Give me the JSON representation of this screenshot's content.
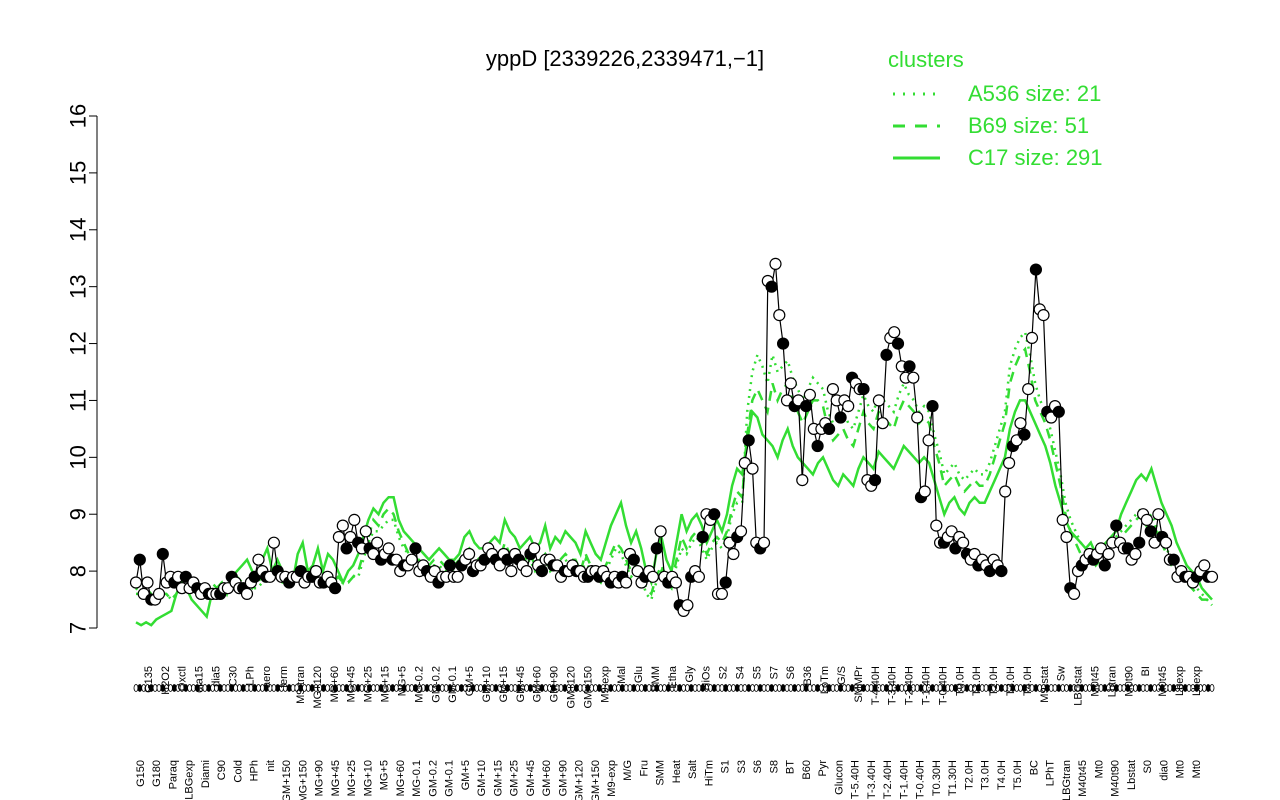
{
  "chart_data": {
    "type": "line",
    "title": "yppD [2339226,2339471,−1]",
    "xlabel": "",
    "ylabel": "",
    "ylim": [
      7,
      16
    ],
    "yticks": [
      7,
      8,
      9,
      10,
      11,
      12,
      13,
      14,
      15,
      16
    ],
    "grid": false,
    "legend": {
      "title": "clusters",
      "placement": "top-right",
      "entries": [
        {
          "label": "A536 size: 21",
          "style": "dotted"
        },
        {
          "label": "B69 size: 51",
          "style": "dashed"
        },
        {
          "label": "C17 size: 291",
          "style": "solid"
        }
      ]
    },
    "tick_labels_lower": [
      "G150",
      "G180",
      "Paraq",
      "LBGexp",
      "Diami",
      "C90",
      "Cold",
      "HPh",
      "nit",
      "GM+150",
      "MG+150",
      "MG+90",
      "MG+45",
      "MG+25",
      "MG+10",
      "MG+5",
      "MG+60",
      "MG-0.1",
      "GM-0.2",
      "GM-0.1",
      "GM+5",
      "GM+10",
      "GM+15",
      "GM+25",
      "GM+45",
      "GM+60",
      "GM+90",
      "GM+120",
      "GM+150",
      "M9-exp",
      "M/G",
      "Fru",
      "SMM",
      "Heat",
      "Salt",
      "HiTm",
      "S1",
      "S3",
      "S6",
      "S8",
      "BT",
      "B60",
      "Pyr",
      "Glucon",
      "T-5.40H",
      "T-3.40H",
      "T-2.40H",
      "T-1.40H",
      "T-0.40H",
      "T0.30H",
      "T1.30H",
      "T2.0H",
      "T3.0H",
      "T4.0H",
      "T5.0H",
      "BC",
      "LPhT",
      "LBGtran",
      "M40t45",
      "Mt0",
      "M40t90",
      "Lbstat",
      "S0",
      "dia0",
      "Mt0",
      "Mt0"
    ],
    "tick_labels_upper": [
      "G135",
      "H2O2",
      "Oxctl",
      "dia15",
      "dia5",
      "C30",
      "LPh",
      "aero",
      "ferm",
      "M9-tran",
      "MG+120",
      "MG+60",
      "MG+45",
      "MG+25",
      "MG+15",
      "MG+5",
      "MG-0.2",
      "GM-0.2",
      "GM-0.1",
      "GM+5",
      "GM+10",
      "GM+15",
      "GM+45",
      "GM+60",
      "GM+90",
      "GM+120",
      "GM+150",
      "M9-exp",
      "Mal",
      "Glu",
      "BMM",
      "Etha",
      "Gly",
      "HiOs",
      "S2",
      "S4",
      "S5",
      "S7",
      "S6",
      "B36",
      "LoTm",
      "G/S",
      "SMMPr",
      "T-4.40H",
      "T-3.40H",
      "T-2.40H",
      "T-1.40H",
      "T-0.40H",
      "T0.0H",
      "T1.0H",
      "T2.0H",
      "T3.0H",
      "T4.0H",
      "M9-stat",
      "Sw",
      "LBGstat",
      "M0t45",
      "Lbtran",
      "M0t90",
      "BI",
      "M0t45",
      "Lbexp",
      "Lbexp"
    ],
    "series": [
      {
        "name": "C17 size: 291",
        "style": "solid",
        "values": [
          7.1,
          7.05,
          7.1,
          7.05,
          7.15,
          7.2,
          7.25,
          7.3,
          7.6,
          7.8,
          7.7,
          7.5,
          7.4,
          7.3,
          7.2,
          7.6,
          7.7,
          7.8,
          7.6,
          7.9,
          8.0,
          8.1,
          8.2,
          8.0,
          7.9,
          8.2,
          8.4,
          8.0,
          8.2,
          8.0,
          7.9,
          7.8,
          8.3,
          8.5,
          8.0,
          8.1,
          8.4,
          8.0,
          8.3,
          8.2,
          8.0,
          7.8,
          8.0,
          8.1,
          8.3,
          8.6,
          8.9,
          9.1,
          9.0,
          9.2,
          9.3,
          9.3,
          8.9,
          8.7,
          8.6,
          8.5,
          8.4,
          8.3,
          8.2,
          8.3,
          8.4,
          8.3,
          8.2,
          8.2,
          8.3,
          8.6,
          8.7,
          8.5,
          8.4,
          8.4,
          8.5,
          8.6,
          8.5,
          8.9,
          8.7,
          8.6,
          8.4,
          8.5,
          8.6,
          8.4,
          8.5,
          8.8,
          8.4,
          8.6,
          8.5,
          8.7,
          8.6,
          8.5,
          8.3,
          8.7,
          8.5,
          8.3,
          8.2,
          8.5,
          8.8,
          9.0,
          9.2,
          8.8,
          8.5,
          8.7,
          8.4,
          8.0,
          7.8,
          8.3,
          8.6,
          8.2,
          8.0,
          8.5,
          9.0,
          8.7,
          8.9,
          9.0,
          8.8,
          8.5,
          8.7,
          8.9,
          8.7,
          9.0,
          9.5,
          9.8,
          9.7,
          10.3,
          10.8,
          10.7,
          10.4,
          10.3,
          10.2,
          10.0,
          10.3,
          10.5,
          10.2,
          10.0,
          9.9,
          9.8,
          9.7,
          9.9,
          10.0,
          9.8,
          9.6,
          9.5,
          9.7,
          9.6,
          9.5,
          9.8,
          10.0,
          9.9,
          9.8,
          10.1,
          10.0,
          9.9,
          9.8,
          10.0,
          10.2,
          10.1,
          10.0,
          9.9,
          10.0,
          9.9,
          9.6,
          9.3,
          9.0,
          9.2,
          9.3,
          9.1,
          9.0,
          9.2,
          9.3,
          9.2,
          9.2,
          9.4,
          9.6,
          9.8,
          10.0,
          10.5,
          10.8,
          11.0,
          11.0,
          10.8,
          10.6,
          10.4,
          10.2,
          9.9,
          9.5,
          9.2,
          8.9,
          8.7,
          8.6,
          8.5,
          8.4,
          8.5,
          8.3,
          8.4,
          8.5,
          8.6,
          8.7,
          9.0,
          9.2,
          9.4,
          9.6,
          9.7,
          9.6,
          9.8,
          9.5,
          9.2,
          9.0,
          8.8,
          8.5,
          8.3,
          8.1,
          8.0,
          7.9,
          7.7,
          7.6,
          7.5
        ]
      },
      {
        "name": "B69 size: 51",
        "style": "dashed",
        "values": [
          7.6,
          7.6,
          7.7,
          7.6,
          7.5,
          7.6,
          7.6,
          7.5,
          7.6,
          7.8,
          7.7,
          7.7,
          7.8,
          7.6,
          7.7,
          7.8,
          7.7,
          7.8,
          7.7,
          7.9,
          7.9,
          7.8,
          7.8,
          7.7,
          7.8,
          7.9,
          7.9,
          8.0,
          8.0,
          7.9,
          7.8,
          7.8,
          7.9,
          8.0,
          7.9,
          7.9,
          8.0,
          7.9,
          7.8,
          7.8,
          7.9,
          7.8,
          7.8,
          7.9,
          8.0,
          8.3,
          8.6,
          8.9,
          8.8,
          9.0,
          9.1,
          9.0,
          8.7,
          8.5,
          8.3,
          8.2,
          8.2,
          8.1,
          8.1,
          8.2,
          8.2,
          8.1,
          8.1,
          8.1,
          8.2,
          8.3,
          8.4,
          8.3,
          8.2,
          8.2,
          8.3,
          8.3,
          8.2,
          8.5,
          8.3,
          8.3,
          8.2,
          8.2,
          8.3,
          8.1,
          8.2,
          8.3,
          8.1,
          8.2,
          8.2,
          8.3,
          8.2,
          8.2,
          8.0,
          8.3,
          8.1,
          8.0,
          7.9,
          8.1,
          8.3,
          8.5,
          8.4,
          8.2,
          8.0,
          8.1,
          8.0,
          7.7,
          7.6,
          7.9,
          8.1,
          7.9,
          7.8,
          8.2,
          8.6,
          8.4,
          8.6,
          8.7,
          8.5,
          8.3,
          8.5,
          8.6,
          8.5,
          8.7,
          9.1,
          9.4,
          9.3,
          10.4,
          11.0,
          11.2,
          11.0,
          10.8,
          11.3,
          11.0,
          11.2,
          11.3,
          11.0,
          10.8,
          10.6,
          10.8,
          11.0,
          11.0,
          10.9,
          10.5,
          10.3,
          10.4,
          10.5,
          10.3,
          10.2,
          10.5,
          10.8,
          10.6,
          10.5,
          10.8,
          10.7,
          10.6,
          10.5,
          10.8,
          11.0,
          10.9,
          10.8,
          10.6,
          10.7,
          10.6,
          10.2,
          9.9,
          9.5,
          9.6,
          9.7,
          9.5,
          9.4,
          9.5,
          9.6,
          9.5,
          9.5,
          9.7,
          10.0,
          10.3,
          10.6,
          11.3,
          11.6,
          11.8,
          11.9,
          11.5,
          11.0,
          10.8,
          10.6,
          10.3,
          9.9,
          9.5,
          9.0,
          8.7,
          8.5,
          8.3,
          8.2,
          8.3,
          8.1,
          8.2,
          8.3,
          8.4,
          8.4,
          8.6,
          8.7,
          8.8,
          8.9,
          9.0,
          8.8,
          8.9,
          8.7,
          8.5,
          8.3,
          8.1,
          8.0,
          7.9,
          7.8,
          7.7,
          7.6,
          7.5,
          7.5,
          7.4
        ]
      },
      {
        "name": "A536 size: 21",
        "style": "dotted",
        "values": [
          7.7,
          7.6,
          7.6,
          7.5,
          7.6,
          7.6,
          7.6,
          7.5,
          7.6,
          7.7,
          7.7,
          7.6,
          7.7,
          7.6,
          7.7,
          7.7,
          7.7,
          7.8,
          7.7,
          7.8,
          7.8,
          7.8,
          7.7,
          7.7,
          7.7,
          7.8,
          7.9,
          7.9,
          7.9,
          7.8,
          7.8,
          7.8,
          7.9,
          7.9,
          7.8,
          7.9,
          7.9,
          7.9,
          7.8,
          7.8,
          7.8,
          7.8,
          7.8,
          7.9,
          7.9,
          8.2,
          8.5,
          8.7,
          8.7,
          8.8,
          8.9,
          8.9,
          8.6,
          8.4,
          8.3,
          8.1,
          8.1,
          8.0,
          8.0,
          8.1,
          8.1,
          8.0,
          8.0,
          8.0,
          8.1,
          8.2,
          8.3,
          8.2,
          8.1,
          8.1,
          8.2,
          8.2,
          8.1,
          8.4,
          8.2,
          8.2,
          8.1,
          8.1,
          8.2,
          8.0,
          8.1,
          8.2,
          8.0,
          8.1,
          8.1,
          8.2,
          8.1,
          8.1,
          7.9,
          8.2,
          8.0,
          7.9,
          7.8,
          8.0,
          8.2,
          8.4,
          8.3,
          8.1,
          7.9,
          8.0,
          7.9,
          7.6,
          7.5,
          7.8,
          8.0,
          7.8,
          7.7,
          8.1,
          8.4,
          8.3,
          8.5,
          8.6,
          8.4,
          8.2,
          8.4,
          8.5,
          8.4,
          8.6,
          9.0,
          9.2,
          9.2,
          10.8,
          11.5,
          11.8,
          11.6,
          11.3,
          11.8,
          11.5,
          11.6,
          11.7,
          11.4,
          11.2,
          11.0,
          11.2,
          11.4,
          11.3,
          11.2,
          10.8,
          10.6,
          10.7,
          10.8,
          10.6,
          10.5,
          10.8,
          11.1,
          10.9,
          10.8,
          11.1,
          11.0,
          10.9,
          10.8,
          11.1,
          11.3,
          11.1,
          11.0,
          10.8,
          10.9,
          10.8,
          10.4,
          10.1,
          9.7,
          9.8,
          9.9,
          9.7,
          9.6,
          9.7,
          9.8,
          9.7,
          9.7,
          9.9,
          10.2,
          10.5,
          10.8,
          11.6,
          11.9,
          12.1,
          12.2,
          11.8,
          11.3,
          11.0,
          10.8,
          10.5,
          10.1,
          9.7,
          9.2,
          8.9,
          8.7,
          8.5,
          8.4,
          8.5,
          8.3,
          8.4,
          8.5,
          8.5,
          8.6,
          8.7,
          8.8,
          8.9,
          9.0,
          9.1,
          8.9,
          9.0,
          8.8,
          8.6,
          8.4,
          8.2,
          8.1,
          8.0,
          7.9,
          7.8,
          7.7,
          7.6,
          7.5,
          7.4
        ]
      },
      {
        "name": "",
        "style": "points",
        "values": [
          7.8,
          8.2,
          7.6,
          7.8,
          7.5,
          7.5,
          7.6,
          8.3,
          7.8,
          7.9,
          7.8,
          7.9,
          7.7,
          7.9,
          7.7,
          7.8,
          7.7,
          7.6,
          7.7,
          7.6,
          7.6,
          7.6,
          7.6,
          7.7,
          7.7,
          7.9,
          7.8,
          7.7,
          7.7,
          7.6,
          7.8,
          7.9,
          8.2,
          8.0,
          7.9,
          7.9,
          8.5,
          8.0,
          7.9,
          7.9,
          7.8,
          7.9,
          7.9,
          8.0,
          7.8,
          7.9,
          7.9,
          8.0,
          7.8,
          7.8,
          7.9,
          7.8,
          7.7,
          8.6,
          8.8,
          8.4,
          8.6,
          8.9,
          8.5,
          8.4,
          8.7,
          8.4,
          8.3,
          8.5,
          8.2,
          8.3,
          8.4,
          8.2,
          8.2,
          8.0,
          8.1,
          8.1,
          8.2,
          8.4,
          8.0,
          8.1,
          8.0,
          7.9,
          8.0,
          7.8,
          7.9,
          7.9,
          8.1,
          7.9,
          7.9,
          8.1,
          8.2,
          8.3,
          8.0,
          8.1,
          8.1,
          8.2,
          8.4,
          8.3,
          8.2,
          8.1,
          8.3,
          8.2,
          8.0,
          8.3,
          8.2,
          8.1,
          8.0,
          8.3,
          8.4,
          8.1,
          8.0,
          8.2,
          8.2,
          8.1,
          8.1,
          7.9,
          8.0,
          8.0,
          8.1,
          8.0,
          8.0,
          7.9,
          7.9,
          8.0,
          8.0,
          7.9,
          8.0,
          7.9,
          7.8,
          7.9,
          7.8,
          7.9,
          7.8,
          8.3,
          8.2,
          8.0,
          7.8,
          7.9,
          8.0,
          7.9,
          8.4,
          8.7,
          7.9,
          7.8,
          7.9,
          7.8,
          7.4,
          7.3,
          7.4,
          7.9,
          8.0,
          7.9,
          8.6,
          9.0,
          8.9,
          9.0,
          7.6,
          7.6,
          7.8,
          8.5,
          8.3,
          8.6,
          8.7,
          9.9,
          10.3,
          9.8,
          8.5,
          8.4,
          8.5,
          13.1,
          13.0,
          13.4,
          12.5,
          12.0,
          11.0,
          11.3,
          10.9,
          11.0,
          9.6,
          10.9,
          11.1,
          10.5,
          10.2,
          10.5,
          10.6,
          10.5,
          11.2,
          11.0,
          10.7,
          11.0,
          10.9,
          11.4,
          11.3,
          11.2,
          11.2,
          9.6,
          9.5,
          9.6,
          11.0,
          10.6,
          11.8,
          12.1,
          12.2,
          12.0,
          11.6,
          11.4,
          11.6,
          11.4,
          10.7,
          9.3,
          9.4,
          10.3,
          10.9,
          8.8,
          8.5,
          8.5,
          8.6,
          8.7,
          8.4,
          8.6,
          8.5,
          8.3,
          8.2,
          8.3,
          8.1,
          8.2,
          8.1,
          8.0,
          8.2,
          8.1,
          8.0,
          9.4,
          9.9,
          10.2,
          10.3,
          10.6,
          10.4,
          11.2,
          12.1,
          13.3,
          12.6,
          12.5,
          10.8,
          10.7,
          10.9,
          10.8,
          8.9,
          8.6,
          7.7,
          7.6,
          8.0,
          8.1,
          8.2,
          8.3,
          8.2,
          8.3,
          8.4,
          8.1,
          8.3,
          8.5,
          8.8,
          8.5,
          8.4,
          8.4,
          8.2,
          8.3,
          8.5,
          9.0,
          8.9,
          8.7,
          8.5,
          9.0,
          8.6,
          8.5,
          8.2,
          8.2,
          7.9,
          8.0,
          7.9,
          7.9,
          7.8,
          7.9,
          8.0,
          8.1,
          7.9,
          7.9
        ]
      }
    ]
  },
  "colors": {
    "cluster_lines": "#33dd33",
    "points_fill_open": "#ffffff",
    "points_fill_filled": "#000000",
    "axis": "#000000",
    "legend_text": "#33dd33"
  }
}
